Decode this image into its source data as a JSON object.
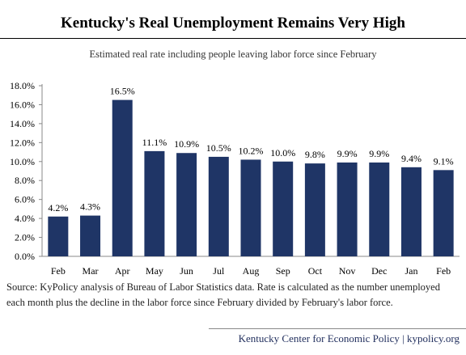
{
  "chart_data": {
    "type": "bar",
    "title": "Kentucky's Real Unemployment Remains Very High",
    "subtitle": "Estimated real rate including people leaving labor force since February",
    "categories": [
      "Feb",
      "Mar",
      "Apr",
      "May",
      "Jun",
      "Jul",
      "Aug",
      "Sep",
      "Oct",
      "Nov",
      "Dec",
      "Jan",
      "Feb"
    ],
    "values": [
      4.2,
      4.3,
      16.5,
      11.1,
      10.9,
      10.5,
      10.2,
      10.0,
      9.8,
      9.9,
      9.9,
      9.4,
      9.1
    ],
    "data_labels": [
      "4.2%",
      "4.3%",
      "16.5%",
      "11.1%",
      "10.9%",
      "10.5%",
      "10.2%",
      "10.0%",
      "9.8%",
      "9.9%",
      "9.9%",
      "9.4%",
      "9.1%"
    ],
    "y_ticks": [
      0,
      2,
      4,
      6,
      8,
      10,
      12,
      14,
      16,
      18
    ],
    "y_tick_labels": [
      "0.0%",
      "2.0%",
      "4.0%",
      "6.0%",
      "8.0%",
      "10.0%",
      "12.0%",
      "14.0%",
      "16.0%",
      "18.0%"
    ],
    "ylim": [
      0,
      18
    ],
    "xlabel": "",
    "ylabel": "",
    "grid": false,
    "legend": "none",
    "bar_color": "#1f3566"
  },
  "source": "Source: KyPolicy analysis of Bureau of Labor Statistics data. Rate is calculated as the number unemployed each month plus the decline in the labor force since February divided by February's labor force.",
  "footer": "Kentucky Center for Economic Policy | kypolicy.org"
}
